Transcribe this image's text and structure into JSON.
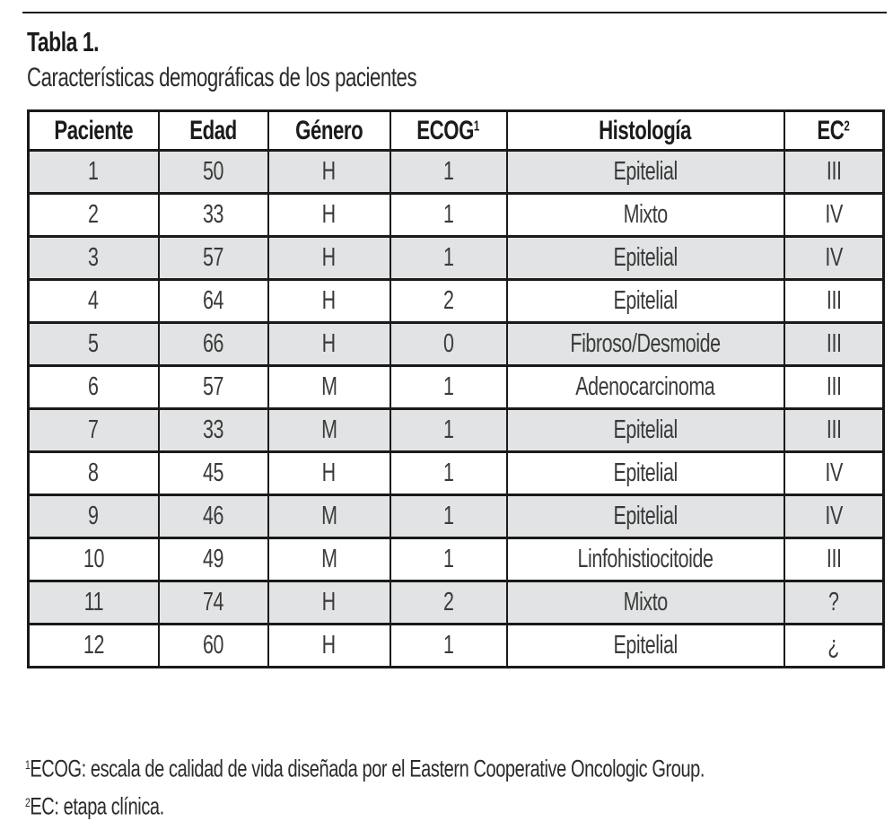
{
  "header": {
    "label": "Tabla 1.",
    "caption": "Características demográficas de los pacientes"
  },
  "table": {
    "columns": [
      {
        "key": "paciente",
        "label": "Paciente",
        "sup": ""
      },
      {
        "key": "edad",
        "label": "Edad",
        "sup": ""
      },
      {
        "key": "genero",
        "label": "Género",
        "sup": ""
      },
      {
        "key": "ecog",
        "label": "ECOG",
        "sup": "1"
      },
      {
        "key": "histologia",
        "label": "Histología",
        "sup": ""
      },
      {
        "key": "ec",
        "label": "EC",
        "sup": "2"
      }
    ],
    "rows": [
      [
        "1",
        "50",
        "H",
        "1",
        "Epitelial",
        "III"
      ],
      [
        "2",
        "33",
        "H",
        "1",
        "Mixto",
        "IV"
      ],
      [
        "3",
        "57",
        "H",
        "1",
        "Epitelial",
        "IV"
      ],
      [
        "4",
        "64",
        "H",
        "2",
        "Epitelial",
        "III"
      ],
      [
        "5",
        "66",
        "H",
        "0",
        "Fibroso/Desmoide",
        "III"
      ],
      [
        "6",
        "57",
        "M",
        "1",
        "Adenocarcinoma",
        "III"
      ],
      [
        "7",
        "33",
        "M",
        "1",
        "Epitelial",
        "III"
      ],
      [
        "8",
        "45",
        "H",
        "1",
        "Epitelial",
        "IV"
      ],
      [
        "9",
        "46",
        "M",
        "1",
        "Epitelial",
        "IV"
      ],
      [
        "10",
        "49",
        "M",
        "1",
        "Linfohistiocitoide",
        "III"
      ],
      [
        "11",
        "74",
        "H",
        "2",
        "Mixto",
        "?"
      ],
      [
        "12",
        "60",
        "H",
        "1",
        "Epitelial",
        "¿"
      ]
    ]
  },
  "footnotes": [
    {
      "sup": "1",
      "text": "ECOG: escala de calidad de vida diseñada por el Eastern Cooperative Oncologic Group."
    },
    {
      "sup": "2",
      "text": "EC: etapa clínica."
    }
  ],
  "colors": {
    "row_stripe": "#e2e3e4",
    "border": "#1a1a1a",
    "data_text": "#3a3a3a",
    "heading_text": "#1b1b1b"
  }
}
